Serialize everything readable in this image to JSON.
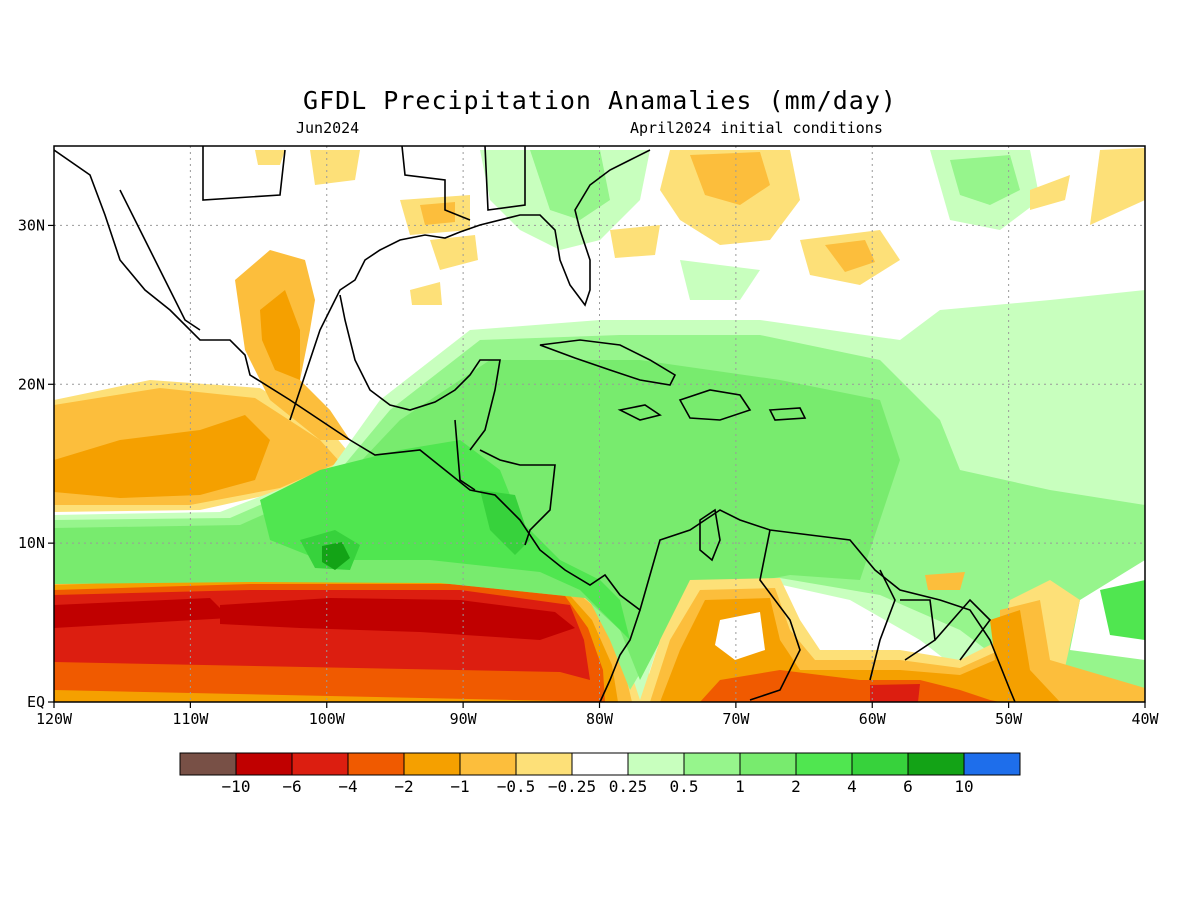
{
  "title": "GFDL Precipitation Anamalies (mm/day)",
  "subtitle_left": "Jun2024",
  "subtitle_right": "April2024 initial conditions",
  "map": {
    "lon_range": [
      -120,
      -40
    ],
    "lat_range": [
      0,
      35
    ],
    "x_ticks": [
      {
        "lon": -120,
        "label": "120W"
      },
      {
        "lon": -110,
        "label": "110W"
      },
      {
        "lon": -100,
        "label": "100W"
      },
      {
        "lon": -90,
        "label": "90W"
      },
      {
        "lon": -80,
        "label": "80W"
      },
      {
        "lon": -70,
        "label": "70W"
      },
      {
        "lon": -60,
        "label": "60W"
      },
      {
        "lon": -50,
        "label": "50W"
      },
      {
        "lon": -40,
        "label": "40W"
      }
    ],
    "y_ticks": [
      {
        "lat": 0,
        "label": "EQ"
      },
      {
        "lat": 10,
        "label": "10N"
      },
      {
        "lat": 20,
        "label": "20N"
      },
      {
        "lat": 30,
        "label": "30N"
      }
    ],
    "gridlines": true
  },
  "colorbar": {
    "colors": [
      "#785046",
      "#c00000",
      "#dc1e10",
      "#f05a00",
      "#f5a000",
      "#fcbe3c",
      "#fde078",
      "#ffffff",
      "#c8ffbe",
      "#96f58c",
      "#78eb6e",
      "#50e650",
      "#37d23c",
      "#13a316",
      "#1e6eeb"
    ],
    "labels": [
      "-10",
      "-6",
      "-4",
      "-2",
      "-1",
      "-0.5",
      "-0.25",
      "0.25",
      "0.5",
      "1",
      "2",
      "4",
      "6",
      "10"
    ]
  },
  "colors": {
    "land_outline": "#000000",
    "grid": "#9a9a9a"
  }
}
